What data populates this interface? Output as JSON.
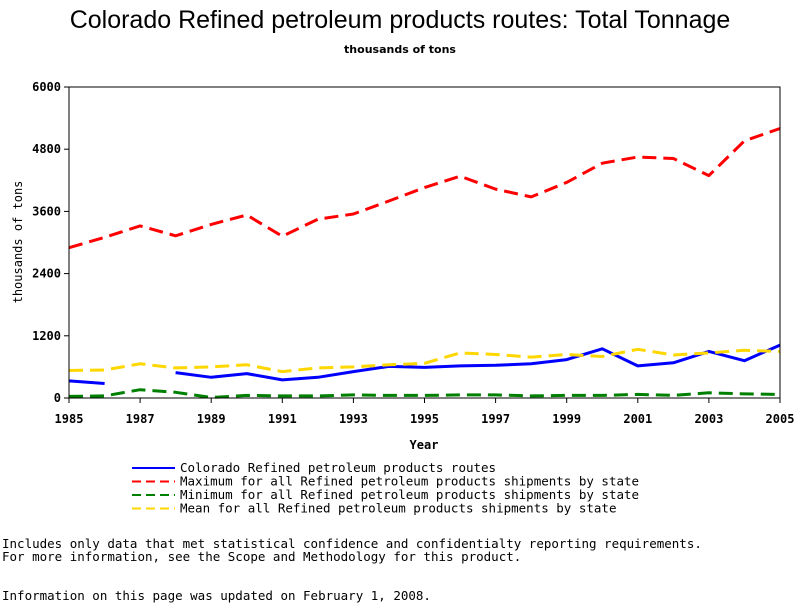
{
  "chart_data": {
    "type": "line",
    "title": "Colorado Refined petroleum products routes: Total Tonnage",
    "subtitle": "thousands of tons",
    "xlabel": "Year",
    "ylabel": "thousands of tons",
    "xlim": [
      1985,
      2005
    ],
    "ylim": [
      0,
      6000
    ],
    "x_ticks": [
      "1985",
      "1987",
      "1989",
      "1991",
      "1993",
      "1995",
      "1997",
      "1999",
      "2001",
      "2003",
      "2005"
    ],
    "y_ticks": [
      "0",
      "1200",
      "2400",
      "3600",
      "4800",
      "6000"
    ],
    "grid": false,
    "legend_position": "bottom",
    "x": [
      1985,
      1986,
      1987,
      1988,
      1989,
      1990,
      1991,
      1992,
      1993,
      1994,
      1995,
      1996,
      1997,
      1998,
      1999,
      2000,
      2001,
      2002,
      2003,
      2004,
      2005
    ],
    "series": [
      {
        "name": "Colorado Refined petroleum products routes",
        "color": "#0000ff",
        "dash": "solid",
        "values": [
          330,
          280,
          null,
          490,
          400,
          470,
          350,
          400,
          510,
          610,
          590,
          620,
          630,
          660,
          740,
          950,
          620,
          680,
          900,
          720,
          1020
        ]
      },
      {
        "name": "Maximum for all Refined petroleum products shipments by state",
        "color": "#ff0000",
        "dash": "dashed",
        "values": [
          2900,
          3100,
          3320,
          3130,
          3350,
          3530,
          3120,
          3450,
          3550,
          3800,
          4060,
          4280,
          4030,
          3880,
          4160,
          4530,
          4650,
          4620,
          4290,
          4960,
          5200
        ]
      },
      {
        "name": "Minimum for all Refined petroleum products shipments by state",
        "color": "#008000",
        "dash": "dashed",
        "values": [
          30,
          40,
          160,
          110,
          10,
          50,
          40,
          40,
          60,
          50,
          50,
          60,
          60,
          40,
          50,
          50,
          70,
          50,
          100,
          80,
          70
        ]
      },
      {
        "name": "Mean for all Refined petroleum products shipments by state",
        "color": "#ffd700",
        "dash": "dashed",
        "values": [
          530,
          540,
          660,
          580,
          600,
          640,
          510,
          580,
          600,
          640,
          670,
          870,
          840,
          790,
          840,
          800,
          940,
          830,
          870,
          920,
          900
        ]
      }
    ]
  },
  "footnotes": {
    "line1": "Includes only data that met statistical confidence and confidentialty reporting requirements.",
    "line2": "For more information, see the Scope and Methodology for this product.",
    "line3": "Information on this page was updated on February 1, 2008."
  }
}
